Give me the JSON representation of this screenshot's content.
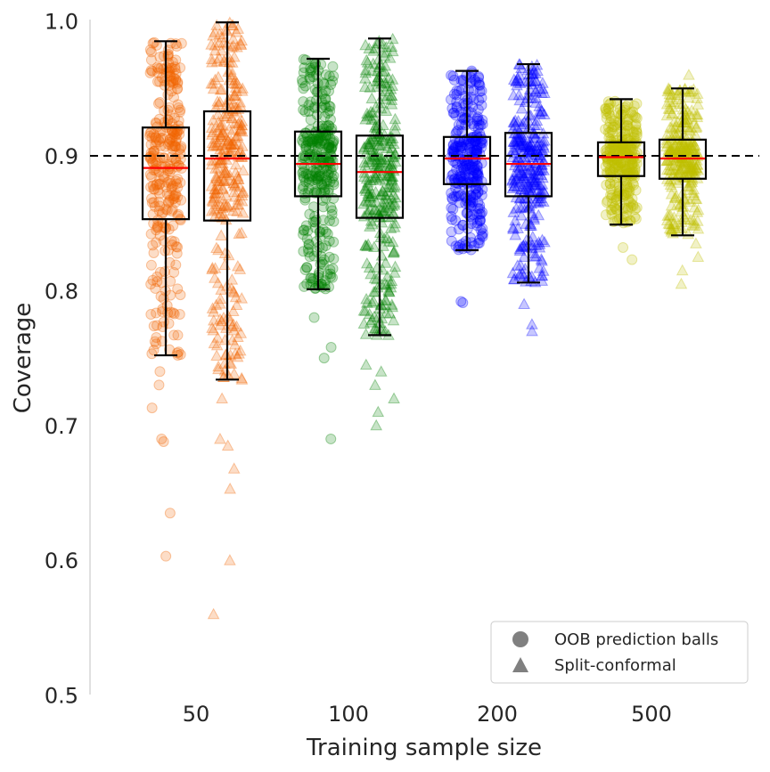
{
  "chart_data": {
    "type": "box-strip",
    "xlabel": "Training sample size",
    "ylabel": "Coverage",
    "ylim": [
      0.5,
      1.0
    ],
    "yticks": [
      "0.5",
      "0.6",
      "0.7",
      "0.8",
      "0.9",
      "1.0"
    ],
    "categories": [
      "50",
      "100",
      "200",
      "500"
    ],
    "reference_line": {
      "value": 0.9,
      "style": "dashed",
      "color": "#000000"
    },
    "median_color": "#ff0000",
    "grid": false,
    "legend": {
      "placement": "bottom-right",
      "entries": [
        {
          "label": "OOB prediction balls",
          "marker": "circle"
        },
        {
          "label": "Split-conformal",
          "marker": "triangle"
        }
      ]
    },
    "category_colors": [
      "#f06400",
      "#008000",
      "#0000ff",
      "#bfbf00"
    ],
    "series": [
      {
        "name": "OOB prediction balls",
        "marker": "circle",
        "boxes": [
          {
            "whisker_low": 0.752,
            "q1": 0.853,
            "median": 0.891,
            "q3": 0.921,
            "whisker_high": 0.985,
            "outliers": [
              0.74,
              0.73,
              0.713,
              0.69,
              0.688,
              0.635,
              0.603
            ]
          },
          {
            "whisker_low": 0.801,
            "q1": 0.87,
            "median": 0.894,
            "q3": 0.918,
            "whisker_high": 0.972,
            "outliers": [
              0.78,
              0.758,
              0.75,
              0.69
            ]
          },
          {
            "whisker_low": 0.83,
            "q1": 0.879,
            "median": 0.898,
            "q3": 0.914,
            "whisker_high": 0.963,
            "outliers": [
              0.792,
              0.791
            ]
          },
          {
            "whisker_low": 0.849,
            "q1": 0.885,
            "median": 0.899,
            "q3": 0.91,
            "whisker_high": 0.942,
            "outliers": [
              0.832,
              0.823
            ]
          }
        ]
      },
      {
        "name": "Split-conformal",
        "marker": "triangle",
        "boxes": [
          {
            "whisker_low": 0.734,
            "q1": 0.852,
            "median": 0.898,
            "q3": 0.933,
            "whisker_high": 0.999,
            "outliers": [
              0.72,
              0.69,
              0.685,
              0.668,
              0.653,
              0.6,
              0.56
            ]
          },
          {
            "whisker_low": 0.767,
            "q1": 0.854,
            "median": 0.888,
            "q3": 0.915,
            "whisker_high": 0.987,
            "outliers": [
              0.745,
              0.74,
              0.73,
              0.72,
              0.71,
              0.7
            ]
          },
          {
            "whisker_low": 0.806,
            "q1": 0.87,
            "median": 0.894,
            "q3": 0.917,
            "whisker_high": 0.968,
            "outliers": [
              0.79,
              0.775,
              0.77
            ]
          },
          {
            "whisker_low": 0.841,
            "q1": 0.883,
            "median": 0.898,
            "q3": 0.912,
            "whisker_high": 0.95,
            "outliers": [
              0.96,
              0.835,
              0.825,
              0.815,
              0.805
            ]
          }
        ]
      }
    ]
  }
}
